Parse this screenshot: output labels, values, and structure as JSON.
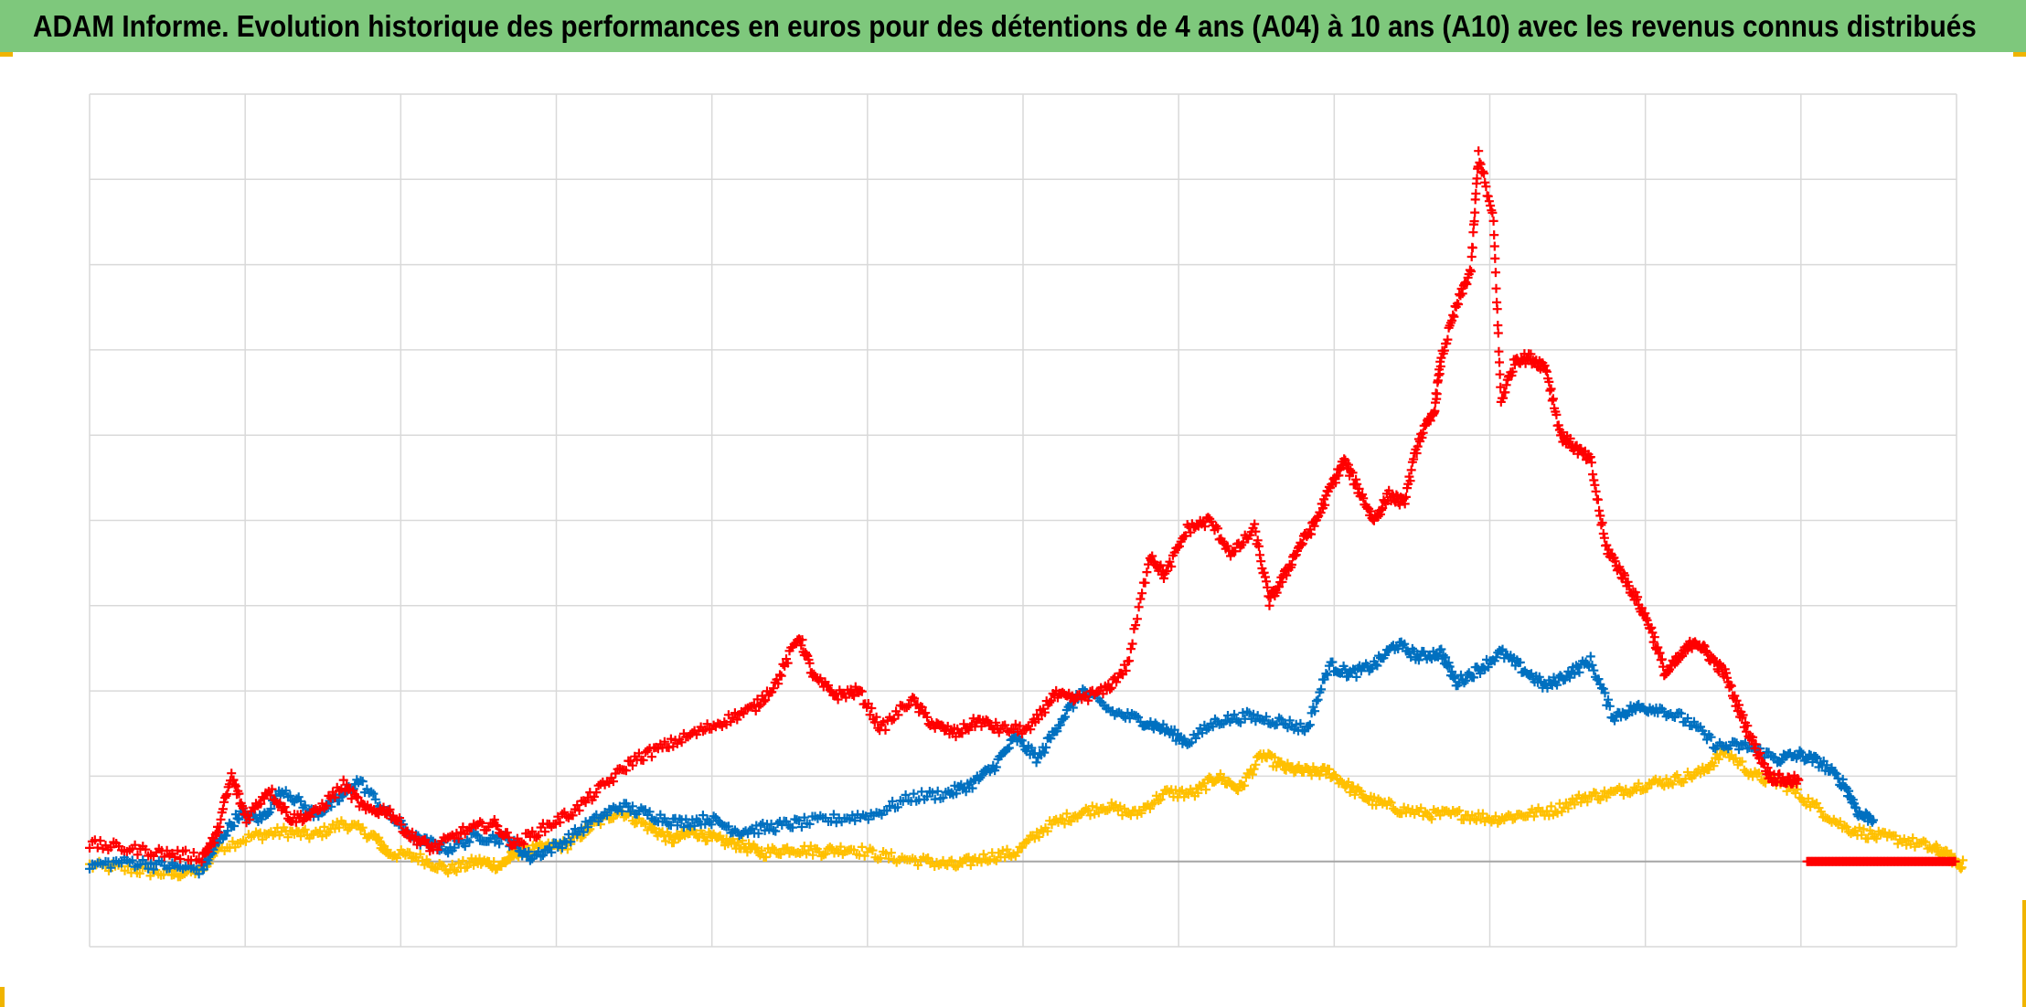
{
  "title": "ADAM Informe. Evolution historique des performances en euros pour des détentions de 4 ans (A04) à 10 ans (A10) avec les revenus connus distribués",
  "colors": {
    "title_bar": "#7ec87c",
    "grid": "#d9d9d9",
    "zero_line": "#a6a6a6",
    "frame_accent": "#f0b400"
  },
  "chart_data": {
    "type": "scatter",
    "marker": "plus",
    "title": "ADAM Informe. Evolution historique des performances en euros pour des détentions de 4 ans (A04) à 10 ans (A10) avec les revenus connus distribués",
    "xlabel": "",
    "ylabel": "",
    "x_range": [
      0,
      12.5
    ],
    "y_range": [
      -1,
      9
    ],
    "x_gridlines": 12,
    "y_gridlines": 10,
    "zero_line": 0,
    "grid": true,
    "legend": "none",
    "tick_labels_visible": false,
    "series": [
      {
        "color": "#ffc000",
        "points": [
          [
            0,
            -0.05
          ],
          [
            0.3,
            -0.1
          ],
          [
            0.55,
            -0.15
          ],
          [
            0.75,
            -0.1
          ],
          [
            0.85,
            0.15
          ],
          [
            1.1,
            0.3
          ],
          [
            1.3,
            0.35
          ],
          [
            1.5,
            0.3
          ],
          [
            1.7,
            0.45
          ],
          [
            1.9,
            0.3
          ],
          [
            2.0,
            0.1
          ],
          [
            2.2,
            0.05
          ],
          [
            2.4,
            -0.1
          ],
          [
            2.6,
            0.0
          ],
          [
            2.75,
            -0.05
          ],
          [
            2.85,
            0.1
          ],
          [
            3.0,
            0.15
          ],
          [
            3.2,
            0.2
          ],
          [
            3.35,
            0.4
          ],
          [
            3.55,
            0.6
          ],
          [
            3.75,
            0.4
          ],
          [
            3.9,
            0.25
          ],
          [
            4.05,
            0.35
          ],
          [
            4.2,
            0.25
          ],
          [
            4.35,
            0.2
          ],
          [
            4.5,
            0.1
          ],
          [
            4.7,
            0.15
          ],
          [
            4.9,
            0.12
          ],
          [
            5.1,
            0.15
          ],
          [
            5.35,
            0.05
          ],
          [
            5.6,
            0.0
          ],
          [
            5.8,
            -0.05
          ],
          [
            6.0,
            0.05
          ],
          [
            6.2,
            0.1
          ],
          [
            6.4,
            0.4
          ],
          [
            6.6,
            0.55
          ],
          [
            6.8,
            0.65
          ],
          [
            7.0,
            0.55
          ],
          [
            7.2,
            0.8
          ],
          [
            7.4,
            0.8
          ],
          [
            7.55,
            1.0
          ],
          [
            7.7,
            0.85
          ],
          [
            7.85,
            1.25
          ],
          [
            8.0,
            1.1
          ],
          [
            8.15,
            1.05
          ],
          [
            8.3,
            1.05
          ],
          [
            8.45,
            0.85
          ],
          [
            8.6,
            0.7
          ],
          [
            8.8,
            0.6
          ],
          [
            9.0,
            0.55
          ],
          [
            9.2,
            0.55
          ],
          [
            9.4,
            0.5
          ],
          [
            9.6,
            0.55
          ],
          [
            9.8,
            0.6
          ],
          [
            10.0,
            0.75
          ],
          [
            10.2,
            0.8
          ],
          [
            10.4,
            0.9
          ],
          [
            10.6,
            0.95
          ],
          [
            10.8,
            1.05
          ],
          [
            10.95,
            1.3
          ],
          [
            11.15,
            1.0
          ],
          [
            11.35,
            0.9
          ],
          [
            11.55,
            0.65
          ],
          [
            11.75,
            0.4
          ],
          [
            11.95,
            0.3
          ],
          [
            12.15,
            0.25
          ],
          [
            12.35,
            0.15
          ],
          [
            12.45,
            0.05
          ],
          [
            12.55,
            -0.05
          ]
        ]
      },
      {
        "color": "#0070c0",
        "points": [
          [
            0,
            -0.05
          ],
          [
            0.25,
            0.0
          ],
          [
            0.5,
            -0.05
          ],
          [
            0.75,
            -0.1
          ],
          [
            0.85,
            0.2
          ],
          [
            1.0,
            0.55
          ],
          [
            1.15,
            0.5
          ],
          [
            1.3,
            0.85
          ],
          [
            1.5,
            0.55
          ],
          [
            1.65,
            0.7
          ],
          [
            1.8,
            0.95
          ],
          [
            2.0,
            0.55
          ],
          [
            2.2,
            0.25
          ],
          [
            2.4,
            0.15
          ],
          [
            2.6,
            0.3
          ],
          [
            2.8,
            0.25
          ],
          [
            2.95,
            0.05
          ],
          [
            3.15,
            0.2
          ],
          [
            3.35,
            0.45
          ],
          [
            3.55,
            0.65
          ],
          [
            3.75,
            0.55
          ],
          [
            3.95,
            0.45
          ],
          [
            4.15,
            0.5
          ],
          [
            4.35,
            0.35
          ],
          [
            4.55,
            0.4
          ],
          [
            4.75,
            0.45
          ],
          [
            5.0,
            0.5
          ],
          [
            5.25,
            0.55
          ],
          [
            5.5,
            0.75
          ],
          [
            5.75,
            0.8
          ],
          [
            5.9,
            0.9
          ],
          [
            6.05,
            1.1
          ],
          [
            6.2,
            1.45
          ],
          [
            6.35,
            1.2
          ],
          [
            6.5,
            1.65
          ],
          [
            6.65,
            2.0
          ],
          [
            6.85,
            1.75
          ],
          [
            7.05,
            1.65
          ],
          [
            7.2,
            1.55
          ],
          [
            7.35,
            1.4
          ],
          [
            7.55,
            1.65
          ],
          [
            7.75,
            1.7
          ],
          [
            7.95,
            1.65
          ],
          [
            8.15,
            1.55
          ],
          [
            8.3,
            2.3
          ],
          [
            8.45,
            2.2
          ],
          [
            8.6,
            2.3
          ],
          [
            8.75,
            2.55
          ],
          [
            8.9,
            2.4
          ],
          [
            9.05,
            2.45
          ],
          [
            9.15,
            2.1
          ],
          [
            9.3,
            2.25
          ],
          [
            9.45,
            2.45
          ],
          [
            9.6,
            2.25
          ],
          [
            9.75,
            2.05
          ],
          [
            9.9,
            2.2
          ],
          [
            10.05,
            2.35
          ],
          [
            10.2,
            1.7
          ],
          [
            10.35,
            1.8
          ],
          [
            10.5,
            1.8
          ],
          [
            10.7,
            1.65
          ],
          [
            10.9,
            1.35
          ],
          [
            11.1,
            1.35
          ],
          [
            11.3,
            1.2
          ],
          [
            11.45,
            1.25
          ],
          [
            11.6,
            1.15
          ],
          [
            11.75,
            0.9
          ],
          [
            11.85,
            0.55
          ],
          [
            11.95,
            0.5
          ]
        ]
      },
      {
        "color": "#ff0000",
        "points": [
          [
            0,
            0.2
          ],
          [
            0.25,
            0.15
          ],
          [
            0.5,
            0.1
          ],
          [
            0.75,
            0.05
          ],
          [
            0.85,
            0.3
          ],
          [
            0.95,
            1.0
          ],
          [
            1.05,
            0.5
          ],
          [
            1.2,
            0.85
          ],
          [
            1.35,
            0.5
          ],
          [
            1.5,
            0.55
          ],
          [
            1.7,
            0.9
          ],
          [
            1.85,
            0.6
          ],
          [
            2.0,
            0.6
          ],
          [
            2.15,
            0.3
          ],
          [
            2.3,
            0.15
          ],
          [
            2.5,
            0.35
          ],
          [
            2.7,
            0.45
          ],
          [
            2.85,
            0.2
          ],
          [
            3.05,
            0.4
          ],
          [
            3.25,
            0.6
          ],
          [
            3.45,
            0.9
          ],
          [
            3.65,
            1.2
          ],
          [
            3.85,
            1.35
          ],
          [
            4.05,
            1.5
          ],
          [
            4.25,
            1.65
          ],
          [
            4.45,
            1.8
          ],
          [
            4.6,
            2.1
          ],
          [
            4.75,
            2.65
          ],
          [
            4.85,
            2.15
          ],
          [
            5.0,
            1.95
          ],
          [
            5.15,
            2.0
          ],
          [
            5.3,
            1.55
          ],
          [
            5.5,
            1.9
          ],
          [
            5.65,
            1.6
          ],
          [
            5.8,
            1.5
          ],
          [
            5.95,
            1.65
          ],
          [
            6.1,
            1.55
          ],
          [
            6.3,
            1.55
          ],
          [
            6.45,
            1.95
          ],
          [
            6.6,
            1.9
          ],
          [
            6.8,
            2.0
          ],
          [
            6.95,
            2.3
          ],
          [
            7.1,
            3.6
          ],
          [
            7.2,
            3.35
          ],
          [
            7.35,
            3.9
          ],
          [
            7.5,
            4.0
          ],
          [
            7.65,
            3.6
          ],
          [
            7.8,
            3.9
          ],
          [
            7.9,
            3.05
          ],
          [
            8.0,
            3.35
          ],
          [
            8.1,
            3.7
          ],
          [
            8.2,
            3.95
          ],
          [
            8.3,
            4.35
          ],
          [
            8.4,
            4.7
          ],
          [
            8.5,
            4.35
          ],
          [
            8.6,
            4.0
          ],
          [
            8.7,
            4.3
          ],
          [
            8.8,
            4.2
          ],
          [
            8.9,
            4.95
          ],
          [
            9.0,
            5.25
          ],
          [
            9.05,
            5.9
          ],
          [
            9.15,
            6.5
          ],
          [
            9.25,
            6.95
          ],
          [
            9.3,
            8.3
          ],
          [
            9.4,
            7.5
          ],
          [
            9.45,
            5.4
          ],
          [
            9.55,
            5.9
          ],
          [
            9.65,
            5.9
          ],
          [
            9.75,
            5.8
          ],
          [
            9.85,
            5.0
          ],
          [
            9.95,
            4.85
          ],
          [
            10.05,
            4.7
          ],
          [
            10.15,
            3.7
          ],
          [
            10.25,
            3.4
          ],
          [
            10.35,
            3.1
          ],
          [
            10.45,
            2.75
          ],
          [
            10.55,
            2.2
          ],
          [
            10.65,
            2.4
          ],
          [
            10.75,
            2.6
          ],
          [
            10.85,
            2.4
          ],
          [
            10.95,
            2.2
          ],
          [
            11.05,
            1.75
          ],
          [
            11.15,
            1.35
          ],
          [
            11.25,
            1.0
          ],
          [
            11.35,
            0.95
          ],
          [
            11.45,
            0.95
          ]
        ]
      },
      {
        "color": "#ff0000",
        "points": [
          [
            11.5,
            0
          ],
          [
            12.5,
            0
          ]
        ]
      }
    ]
  }
}
